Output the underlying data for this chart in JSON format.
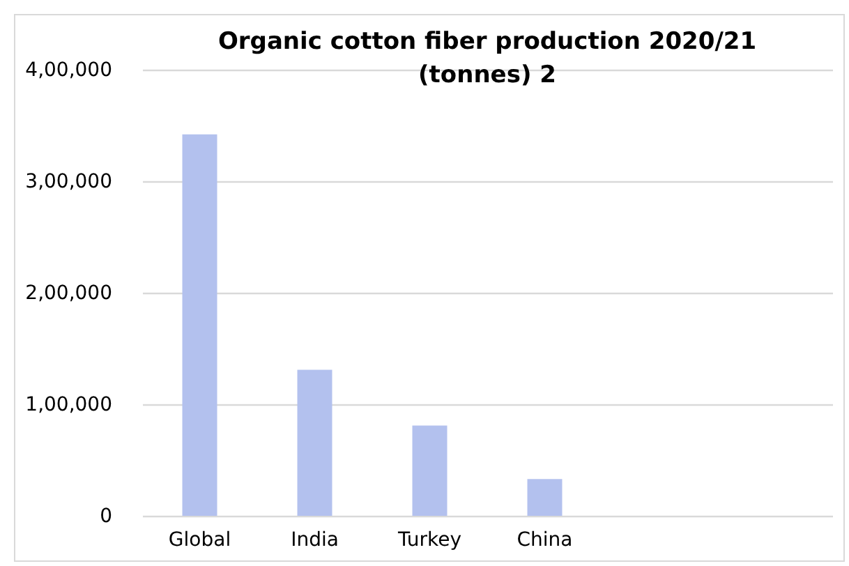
{
  "chart_data": {
    "type": "bar",
    "title": "Organic cotton fiber production 2020/21 (tonnes) 2",
    "categories": [
      "Global",
      "India",
      "Turkey",
      "China",
      null,
      null
    ],
    "values": [
      342000,
      131000,
      81000,
      33000,
      null,
      null
    ],
    "color": "#b3c1ee",
    "ylim": [
      0,
      400000
    ],
    "yticks": [
      {
        "value": 0,
        "label": "0"
      },
      {
        "value": 100000,
        "label": "1,00,000"
      },
      {
        "value": 200000,
        "label": "2,00,000"
      },
      {
        "value": 300000,
        "label": "3,00,000"
      },
      {
        "value": 400000,
        "label": "4,00,000"
      }
    ],
    "grid": "y"
  }
}
